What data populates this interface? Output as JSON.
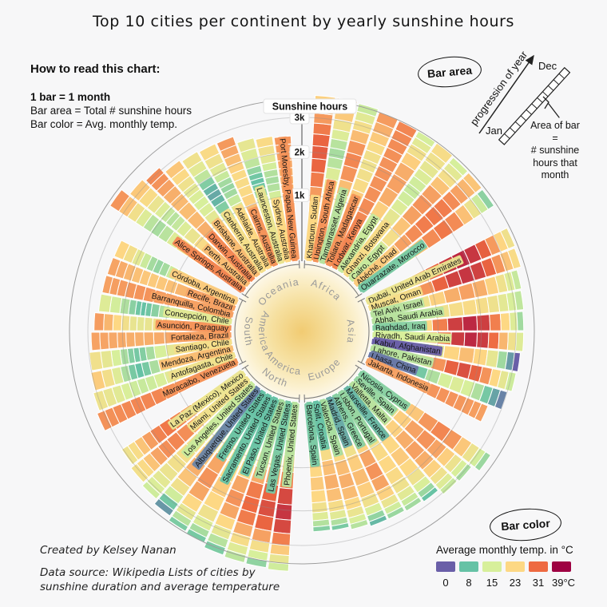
{
  "title": "Top 10 cities per continent by yearly sunshine hours",
  "howto": {
    "heading": "How to read this chart:",
    "line1": "1 bar = 1 month",
    "line2": "Bar area = Total # sunshine hours",
    "line3": "Bar color = Avg. monthly temp."
  },
  "annotations": {
    "bar_area_badge": "Bar area",
    "bar_color_badge": "Bar color",
    "progression": "progression of year",
    "jan": "Jan",
    "dec": "Dec",
    "note_1": "Area of bar",
    "note_2": "=",
    "note_3": "# sunshine",
    "note_4": "hours that",
    "note_5": "month"
  },
  "axis": {
    "label": "Sunshine hours",
    "ticks": [
      "1k",
      "2k",
      "3k"
    ],
    "tick_values": [
      1000,
      2000,
      3000
    ]
  },
  "legend": {
    "title": "Average monthly temp. in °C",
    "stops": [
      {
        "t": 0,
        "label": "0",
        "color": "#6a5fa8"
      },
      {
        "t": 8,
        "label": "8",
        "color": "#66c2a5"
      },
      {
        "t": 15,
        "label": "15",
        "color": "#d7ef9b"
      },
      {
        "t": 23,
        "label": "23",
        "color": "#fdd884"
      },
      {
        "t": 31,
        "label": "31",
        "color": "#ee6a41"
      },
      {
        "t": 39,
        "label": "39°C",
        "color": "#9e0142"
      }
    ]
  },
  "credit": "Created by Kelsey Nanan",
  "source_1": "Data source: Wikipedia Lists of cities by",
  "source_2": "sunshine duration and average temperature",
  "chart_data": {
    "type": "radial-monthly-bar",
    "description": "60 spokes (10 cities per continent), each spoke = 12 monthly segments Jan(inner) to Dec(outer); segment area = monthly sunshine hours, segment color = avg monthly temp.",
    "units": {
      "value": "sunshine hours per year",
      "color": "°C"
    },
    "color_scale": {
      "domain": [
        0,
        8,
        15,
        23,
        31,
        39
      ],
      "range": [
        "#6a5fa8",
        "#66c2a5",
        "#d7ef9b",
        "#fdd884",
        "#ee6a41",
        "#9e0142"
      ]
    },
    "continents": [
      {
        "name": "Africa",
        "start_angle": 0,
        "cities": [
          {
            "city": "Khartoum",
            "country": "Sudan",
            "total": 3737,
            "tJan": 23,
            "tJul": 32,
            "sunAmp": 0.08
          },
          {
            "city": "Upington",
            "country": "South Africa",
            "total": 3732,
            "tJan": 28,
            "tJul": 12,
            "sunAmp": 0.2
          },
          {
            "city": "Tamanrasset",
            "country": "Algeria",
            "total": 3686,
            "tJan": 13,
            "tJul": 29,
            "sunAmp": 0.15
          },
          {
            "city": "Toliara",
            "country": "Madagascar",
            "total": 3610,
            "tJan": 28,
            "tJul": 20,
            "sunAmp": 0.15
          },
          {
            "city": "Lodwar",
            "country": "Kenya",
            "total": 3582,
            "tJan": 29,
            "tJul": 28,
            "sunAmp": 0.06
          },
          {
            "city": "Alexandria",
            "country": "Egypt",
            "total": 3579,
            "tJan": 14,
            "tJul": 27,
            "sunAmp": 0.3
          },
          {
            "city": "Ghanzi",
            "country": "Botswana",
            "total": 3579,
            "tJan": 22,
            "tJul": 14,
            "sunAmp": 0.2
          },
          {
            "city": "Cairo",
            "country": "Egypt",
            "total": 3542,
            "tJan": 14,
            "tJul": 28,
            "sunAmp": 0.25
          },
          {
            "city": "Abéché",
            "country": "Chad",
            "total": 3526,
            "tJan": 24,
            "tJul": 30,
            "sunAmp": 0.1
          },
          {
            "city": "Ouarzazate",
            "country": "Morocco",
            "total": 3507,
            "tJan": 9,
            "tJul": 30,
            "sunAmp": 0.25
          }
        ]
      },
      {
        "name": "Asia",
        "start_angle": 60,
        "cities": [
          {
            "city": "Dubai",
            "country": "United Arab Emirates",
            "total": 3509,
            "tJan": 19,
            "tJul": 36,
            "sunAmp": 0.2
          },
          {
            "city": "Muscat",
            "country": "Oman",
            "total": 3468,
            "tJan": 21,
            "tJul": 35,
            "sunAmp": 0.15
          },
          {
            "city": "Tel Aviv",
            "country": "Israel",
            "total": 3311,
            "tJan": 13,
            "tJul": 27,
            "sunAmp": 0.3
          },
          {
            "city": "Abha",
            "country": "Saudi Arabia",
            "total": 3282,
            "tJan": 13,
            "tJul": 22,
            "sunAmp": 0.2
          },
          {
            "city": "Baghdad",
            "country": "Iraq",
            "total": 3250,
            "tJan": 10,
            "tJul": 36,
            "sunAmp": 0.3
          },
          {
            "city": "Riyadh",
            "country": "Saudi Arabia",
            "total": 3247,
            "tJan": 15,
            "tJul": 36,
            "sunAmp": 0.15
          },
          {
            "city": "Kabul",
            "country": "Afghanistan",
            "total": 3175,
            "tJan": -2,
            "tJul": 25,
            "sunAmp": 0.35
          },
          {
            "city": "Lahore",
            "country": "Pakistan",
            "total": 3134,
            "tJan": 13,
            "tJul": 33,
            "sunAmp": 0.15
          },
          {
            "city": "Lhasa",
            "country": "China",
            "total": 3000,
            "tJan": 2,
            "tJul": 16,
            "sunAmp": 0.15
          },
          {
            "city": "Jakarta",
            "country": "Indonesia",
            "total": 2590,
            "tJan": 27,
            "tJul": 28,
            "sunAmp": 0.06
          }
        ]
      },
      {
        "name": "Europe",
        "start_angle": 120,
        "cities": [
          {
            "city": "Nicosia",
            "country": "Cyprus",
            "total": 3377,
            "tJan": 10,
            "tJul": 29,
            "sunAmp": 0.35
          },
          {
            "city": "Seville",
            "country": "Spain",
            "total": 3100,
            "tJan": 11,
            "tJul": 28,
            "sunAmp": 0.4
          },
          {
            "city": "Valletta",
            "country": "Malta",
            "total": 3054,
            "tJan": 13,
            "tJul": 27,
            "sunAmp": 0.35
          },
          {
            "city": "Marseille",
            "country": "France",
            "total": 2858,
            "tJan": 7,
            "tJul": 24,
            "sunAmp": 0.45
          },
          {
            "city": "Lisbon",
            "country": "Portugal",
            "total": 2806,
            "tJan": 11,
            "tJul": 23,
            "sunAmp": 0.4
          },
          {
            "city": "Athens",
            "country": "Greece",
            "total": 2773,
            "tJan": 10,
            "tJul": 28,
            "sunAmp": 0.4
          },
          {
            "city": "Madrid",
            "country": "Spain",
            "total": 2769,
            "tJan": 6,
            "tJul": 25,
            "sunAmp": 0.45
          },
          {
            "city": "Valencia",
            "country": "Spain",
            "total": 2696,
            "tJan": 12,
            "tJul": 26,
            "sunAmp": 0.35
          },
          {
            "city": "Split",
            "country": "Croatia",
            "total": 2612,
            "tJan": 8,
            "tJul": 26,
            "sunAmp": 0.45
          },
          {
            "city": "Barcelona",
            "country": "Spain",
            "total": 2591,
            "tJan": 9,
            "tJul": 24,
            "sunAmp": 0.4
          }
        ]
      },
      {
        "name": "North America",
        "start_angle": 180,
        "cities": [
          {
            "city": "Phoenix",
            "country": "United States",
            "total": 3872,
            "tJan": 13,
            "tJul": 35,
            "sunAmp": 0.25
          },
          {
            "city": "Las Vegas",
            "country": "United States",
            "total": 3825,
            "tJan": 9,
            "tJul": 33,
            "sunAmp": 0.3
          },
          {
            "city": "Tucson",
            "country": "United States",
            "total": 3806,
            "tJan": 12,
            "tJul": 31,
            "sunAmp": 0.2
          },
          {
            "city": "El Paso",
            "country": "United States",
            "total": 3763,
            "tJan": 8,
            "tJul": 28,
            "sunAmp": 0.2
          },
          {
            "city": "Sacramento",
            "country": "United States",
            "total": 3608,
            "tJan": 8,
            "tJul": 24,
            "sunAmp": 0.45
          },
          {
            "city": "Fresno",
            "country": "United States",
            "total": 3564,
            "tJan": 8,
            "tJul": 28,
            "sunAmp": 0.45
          },
          {
            "city": "Albuquerque",
            "country": "United States",
            "total": 3415,
            "tJan": 3,
            "tJul": 26,
            "sunAmp": 0.25
          },
          {
            "city": "Los Angeles",
            "country": "United States",
            "total": 3254,
            "tJan": 14,
            "tJul": 21,
            "sunAmp": 0.3
          },
          {
            "city": "Miami",
            "country": "United States",
            "total": 3154,
            "tJan": 20,
            "tJul": 29,
            "sunAmp": 0.15
          },
          {
            "city": "La Paz (Mexico)",
            "country": "Mexico",
            "total": 3045,
            "tJan": 19,
            "tJul": 30,
            "sunAmp": 0.15
          }
        ]
      },
      {
        "name": "South America",
        "start_angle": 240,
        "cities": [
          {
            "city": "Maracaibo",
            "country": "Venezuela",
            "total": 3210,
            "tJan": 28,
            "tJul": 29,
            "sunAmp": 0.06
          },
          {
            "city": "Antofagasta",
            "country": "Chile",
            "total": 3110,
            "tJan": 20,
            "tJul": 14,
            "sunAmp": 0.2
          },
          {
            "city": "Mendoza",
            "country": "Argentina",
            "total": 3030,
            "tJan": 25,
            "tJul": 8,
            "sunAmp": 0.35
          },
          {
            "city": "Santiago",
            "country": "Chile",
            "total": 2990,
            "tJan": 21,
            "tJul": 9,
            "sunAmp": 0.45
          },
          {
            "city": "Fortaleza",
            "country": "Brazil",
            "total": 2900,
            "tJan": 27,
            "tJul": 26,
            "sunAmp": 0.1
          },
          {
            "city": "Asunción",
            "country": "Paraguay",
            "total": 2810,
            "tJan": 28,
            "tJul": 18,
            "sunAmp": 0.25
          },
          {
            "city": "Concepción",
            "country": "Chile",
            "total": 2700,
            "tJan": 17,
            "tJul": 8,
            "sunAmp": 0.5
          },
          {
            "city": "Barranquilla",
            "country": "Colombia",
            "total": 2680,
            "tJan": 27,
            "tJul": 28,
            "sunAmp": 0.06
          },
          {
            "city": "Recife",
            "country": "Brazil",
            "total": 2660,
            "tJan": 27,
            "tJul": 24,
            "sunAmp": 0.1
          },
          {
            "city": "Córdoba",
            "country": "Argentina",
            "total": 2640,
            "tJan": 24,
            "tJul": 11,
            "sunAmp": 0.3
          }
        ]
      },
      {
        "name": "Oceania",
        "start_angle": 300,
        "cities": [
          {
            "city": "Alice Springs",
            "country": "Australia",
            "total": 3500,
            "tJan": 29,
            "tJul": 12,
            "sunAmp": 0.2
          },
          {
            "city": "Perth",
            "country": "Australia",
            "total": 3200,
            "tJan": 25,
            "tJul": 13,
            "sunAmp": 0.4
          },
          {
            "city": "Darwin",
            "country": "Australia",
            "total": 3100,
            "tJan": 29,
            "tJul": 25,
            "sunAmp": -0.15
          },
          {
            "city": "Brisbane",
            "country": "Australia",
            "total": 2885,
            "tJan": 25,
            "tJul": 15,
            "sunAmp": 0.2
          },
          {
            "city": "Canberra",
            "country": "Australia",
            "total": 2820,
            "tJan": 21,
            "tJul": 6,
            "sunAmp": 0.35
          },
          {
            "city": "Adelaide",
            "country": "Australia",
            "total": 2779,
            "tJan": 23,
            "tJul": 11,
            "sunAmp": 0.4
          },
          {
            "city": "Cairns",
            "country": "Australia",
            "total": 2770,
            "tJan": 28,
            "tJul": 22,
            "sunAmp": 0.15
          },
          {
            "city": "Launceston",
            "country": "Australia",
            "total": 2560,
            "tJan": 19,
            "tJul": 8,
            "sunAmp": 0.45
          },
          {
            "city": "Sydney",
            "country": "Australia",
            "total": 2500,
            "tJan": 23,
            "tJul": 12,
            "sunAmp": 0.25
          },
          {
            "city": "Port Moresby",
            "country": "Papua New Guinea",
            "total": 2450,
            "tJan": 28,
            "tJul": 26,
            "sunAmp": 0.1
          }
        ]
      }
    ]
  }
}
